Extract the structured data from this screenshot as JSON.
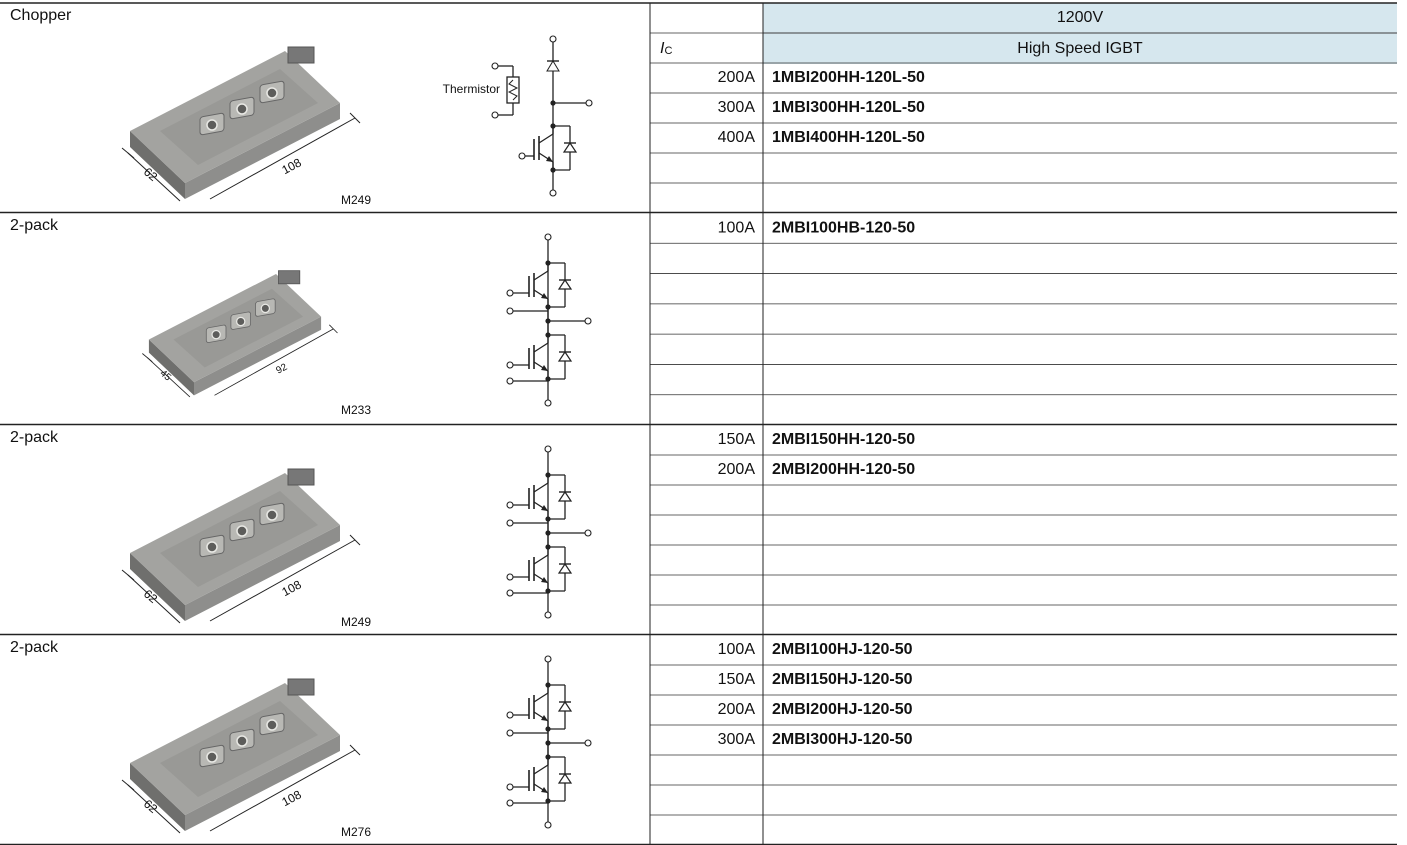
{
  "header": {
    "voltage": "1200V",
    "series": "High Speed IGBT",
    "current_symbol": "I",
    "current_subscript": "C"
  },
  "sections": [
    {
      "type": "Chopper",
      "package": "M249",
      "dimensions": [
        "62",
        "108"
      ],
      "thermistor": "Thermistor",
      "rows": [
        {
          "current": "200A",
          "part": "1MBI200HH-120L-50"
        },
        {
          "current": "300A",
          "part": "1MBI300HH-120L-50"
        },
        {
          "current": "400A",
          "part": "1MBI400HH-120L-50"
        }
      ]
    },
    {
      "type": "2-pack",
      "package": "M233",
      "dimensions": [
        "45",
        "92"
      ],
      "rows": [
        {
          "current": "100A",
          "part": "2MBI100HB-120-50"
        }
      ]
    },
    {
      "type": "2-pack",
      "package": "M249",
      "dimensions": [
        "62",
        "108"
      ],
      "rows": [
        {
          "current": "150A",
          "part": "2MBI150HH-120-50"
        },
        {
          "current": "200A",
          "part": "2MBI200HH-120-50"
        }
      ]
    },
    {
      "type": "2-pack",
      "package": "M276",
      "dimensions": [
        "62",
        "108"
      ],
      "rows": [
        {
          "current": "100A",
          "part": "2MBI100HJ-120-50"
        },
        {
          "current": "150A",
          "part": "2MBI150HJ-120-50"
        },
        {
          "current": "200A",
          "part": "2MBI200HJ-120-50"
        },
        {
          "current": "300A",
          "part": "2MBI300HJ-120-50"
        }
      ]
    }
  ]
}
